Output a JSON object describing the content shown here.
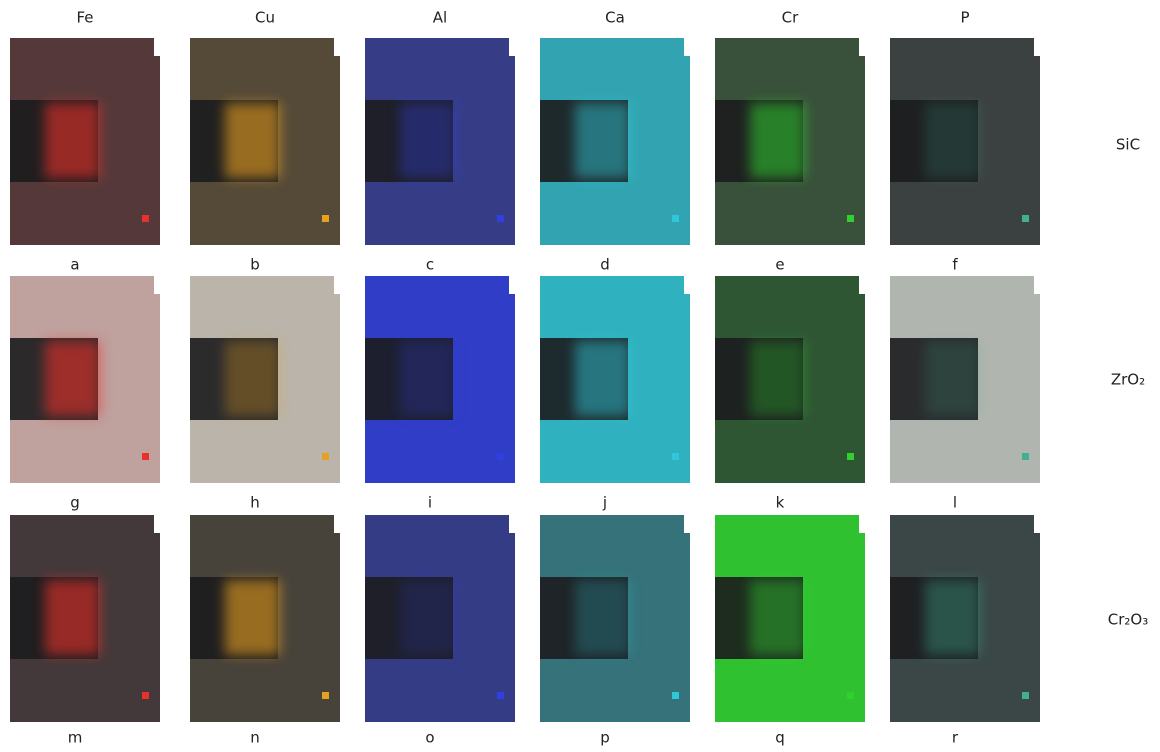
{
  "columns": [
    {
      "name": "Fe",
      "color": "#e8302c"
    },
    {
      "name": "Cu",
      "color": "#e8a020"
    },
    {
      "name": "Al",
      "color": "#3040e0"
    },
    {
      "name": "Ca",
      "color": "#30c8d8"
    },
    {
      "name": "Cr",
      "color": "#30d030"
    },
    {
      "name": "P",
      "color": "#40b090"
    }
  ],
  "rows": [
    {
      "name": "SiC",
      "panels": [
        "a",
        "b",
        "c",
        "d",
        "e",
        "f"
      ]
    },
    {
      "name": "ZrO₂",
      "panels": [
        "g",
        "h",
        "i",
        "j",
        "k",
        "l"
      ]
    },
    {
      "name": "Cr₂O₃",
      "panels": [
        "m",
        "n",
        "o",
        "p",
        "q",
        "r"
      ]
    }
  ]
}
